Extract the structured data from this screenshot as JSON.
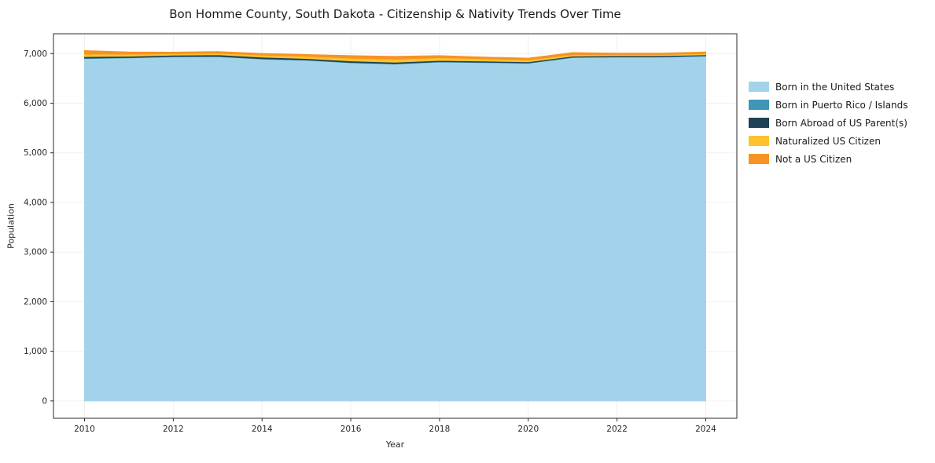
{
  "chart_data": {
    "type": "area",
    "stacked": true,
    "title": "Bon Homme County, South Dakota - Citizenship & Nativity Trends Over Time",
    "xlabel": "Year",
    "ylabel": "Population",
    "x": [
      2010,
      2011,
      2012,
      2013,
      2014,
      2015,
      2016,
      2017,
      2018,
      2019,
      2020,
      2021,
      2022,
      2023,
      2024
    ],
    "series": [
      {
        "name": "Born in the United States",
        "color": "#a3d3ea",
        "values": [
          6900,
          6915,
          6935,
          6940,
          6890,
          6865,
          6815,
          6790,
          6830,
          6820,
          6805,
          6920,
          6930,
          6930,
          6950
        ]
      },
      {
        "name": "Born in Puerto Rico / Islands",
        "color": "#3e95b5",
        "values": [
          10,
          8,
          8,
          8,
          8,
          8,
          8,
          8,
          8,
          8,
          8,
          8,
          8,
          8,
          8
        ]
      },
      {
        "name": "Born Abroad of US Parent(s)",
        "color": "#1f4256",
        "values": [
          30,
          25,
          25,
          28,
          30,
          28,
          30,
          30,
          25,
          22,
          20,
          22,
          20,
          20,
          18
        ]
      },
      {
        "name": "Naturalized US Citizen",
        "color": "#fcc32d",
        "values": [
          50,
          40,
          30,
          35,
          40,
          45,
          55,
          60,
          55,
          45,
          40,
          30,
          25,
          25,
          25
        ]
      },
      {
        "name": "Not a US Citizen",
        "color": "#f79225",
        "values": [
          70,
          45,
          30,
          30,
          35,
          35,
          50,
          55,
          40,
          35,
          35,
          40,
          25,
          25,
          30
        ]
      }
    ],
    "xticks": [
      2010,
      2012,
      2014,
      2016,
      2018,
      2020,
      2022,
      2024
    ],
    "yticks": [
      0,
      1000,
      2000,
      3000,
      4000,
      5000,
      6000,
      7000
    ],
    "xlim": [
      2009.3,
      2024.7
    ],
    "ylim": [
      -350,
      7400
    ],
    "grid": true,
    "legend_position": "right"
  }
}
